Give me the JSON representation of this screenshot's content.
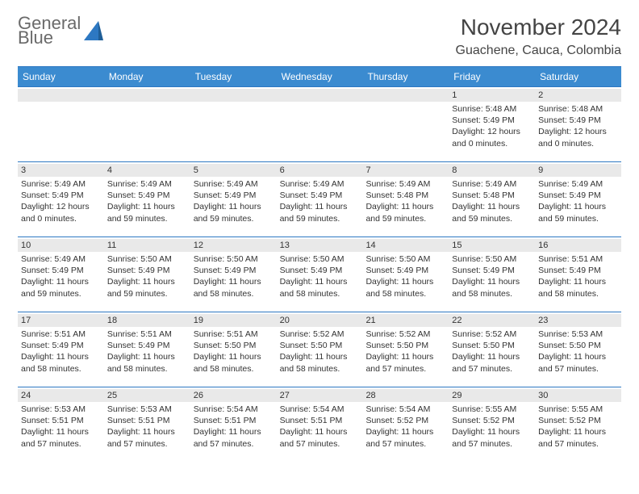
{
  "logo": {
    "word1": "General",
    "word2": "Blue"
  },
  "title": "November 2024",
  "location": "Guachene, Cauca, Colombia",
  "colors": {
    "header_bg": "#3b8bd0",
    "border": "#2d78c2",
    "dayrow_bg": "#e9e9e9",
    "text": "#333333"
  },
  "daysOfWeek": [
    "Sunday",
    "Monday",
    "Tuesday",
    "Wednesday",
    "Thursday",
    "Friday",
    "Saturday"
  ],
  "weeks": [
    [
      {
        "n": "",
        "sunrise": "",
        "sunset": "",
        "daylight": ""
      },
      {
        "n": "",
        "sunrise": "",
        "sunset": "",
        "daylight": ""
      },
      {
        "n": "",
        "sunrise": "",
        "sunset": "",
        "daylight": ""
      },
      {
        "n": "",
        "sunrise": "",
        "sunset": "",
        "daylight": ""
      },
      {
        "n": "",
        "sunrise": "",
        "sunset": "",
        "daylight": ""
      },
      {
        "n": "1",
        "sunrise": "Sunrise: 5:48 AM",
        "sunset": "Sunset: 5:49 PM",
        "daylight": "Daylight: 12 hours and 0 minutes."
      },
      {
        "n": "2",
        "sunrise": "Sunrise: 5:48 AM",
        "sunset": "Sunset: 5:49 PM",
        "daylight": "Daylight: 12 hours and 0 minutes."
      }
    ],
    [
      {
        "n": "3",
        "sunrise": "Sunrise: 5:49 AM",
        "sunset": "Sunset: 5:49 PM",
        "daylight": "Daylight: 12 hours and 0 minutes."
      },
      {
        "n": "4",
        "sunrise": "Sunrise: 5:49 AM",
        "sunset": "Sunset: 5:49 PM",
        "daylight": "Daylight: 11 hours and 59 minutes."
      },
      {
        "n": "5",
        "sunrise": "Sunrise: 5:49 AM",
        "sunset": "Sunset: 5:49 PM",
        "daylight": "Daylight: 11 hours and 59 minutes."
      },
      {
        "n": "6",
        "sunrise": "Sunrise: 5:49 AM",
        "sunset": "Sunset: 5:49 PM",
        "daylight": "Daylight: 11 hours and 59 minutes."
      },
      {
        "n": "7",
        "sunrise": "Sunrise: 5:49 AM",
        "sunset": "Sunset: 5:48 PM",
        "daylight": "Daylight: 11 hours and 59 minutes."
      },
      {
        "n": "8",
        "sunrise": "Sunrise: 5:49 AM",
        "sunset": "Sunset: 5:48 PM",
        "daylight": "Daylight: 11 hours and 59 minutes."
      },
      {
        "n": "9",
        "sunrise": "Sunrise: 5:49 AM",
        "sunset": "Sunset: 5:49 PM",
        "daylight": "Daylight: 11 hours and 59 minutes."
      }
    ],
    [
      {
        "n": "10",
        "sunrise": "Sunrise: 5:49 AM",
        "sunset": "Sunset: 5:49 PM",
        "daylight": "Daylight: 11 hours and 59 minutes."
      },
      {
        "n": "11",
        "sunrise": "Sunrise: 5:50 AM",
        "sunset": "Sunset: 5:49 PM",
        "daylight": "Daylight: 11 hours and 59 minutes."
      },
      {
        "n": "12",
        "sunrise": "Sunrise: 5:50 AM",
        "sunset": "Sunset: 5:49 PM",
        "daylight": "Daylight: 11 hours and 58 minutes."
      },
      {
        "n": "13",
        "sunrise": "Sunrise: 5:50 AM",
        "sunset": "Sunset: 5:49 PM",
        "daylight": "Daylight: 11 hours and 58 minutes."
      },
      {
        "n": "14",
        "sunrise": "Sunrise: 5:50 AM",
        "sunset": "Sunset: 5:49 PM",
        "daylight": "Daylight: 11 hours and 58 minutes."
      },
      {
        "n": "15",
        "sunrise": "Sunrise: 5:50 AM",
        "sunset": "Sunset: 5:49 PM",
        "daylight": "Daylight: 11 hours and 58 minutes."
      },
      {
        "n": "16",
        "sunrise": "Sunrise: 5:51 AM",
        "sunset": "Sunset: 5:49 PM",
        "daylight": "Daylight: 11 hours and 58 minutes."
      }
    ],
    [
      {
        "n": "17",
        "sunrise": "Sunrise: 5:51 AM",
        "sunset": "Sunset: 5:49 PM",
        "daylight": "Daylight: 11 hours and 58 minutes."
      },
      {
        "n": "18",
        "sunrise": "Sunrise: 5:51 AM",
        "sunset": "Sunset: 5:49 PM",
        "daylight": "Daylight: 11 hours and 58 minutes."
      },
      {
        "n": "19",
        "sunrise": "Sunrise: 5:51 AM",
        "sunset": "Sunset: 5:50 PM",
        "daylight": "Daylight: 11 hours and 58 minutes."
      },
      {
        "n": "20",
        "sunrise": "Sunrise: 5:52 AM",
        "sunset": "Sunset: 5:50 PM",
        "daylight": "Daylight: 11 hours and 58 minutes."
      },
      {
        "n": "21",
        "sunrise": "Sunrise: 5:52 AM",
        "sunset": "Sunset: 5:50 PM",
        "daylight": "Daylight: 11 hours and 57 minutes."
      },
      {
        "n": "22",
        "sunrise": "Sunrise: 5:52 AM",
        "sunset": "Sunset: 5:50 PM",
        "daylight": "Daylight: 11 hours and 57 minutes."
      },
      {
        "n": "23",
        "sunrise": "Sunrise: 5:53 AM",
        "sunset": "Sunset: 5:50 PM",
        "daylight": "Daylight: 11 hours and 57 minutes."
      }
    ],
    [
      {
        "n": "24",
        "sunrise": "Sunrise: 5:53 AM",
        "sunset": "Sunset: 5:51 PM",
        "daylight": "Daylight: 11 hours and 57 minutes."
      },
      {
        "n": "25",
        "sunrise": "Sunrise: 5:53 AM",
        "sunset": "Sunset: 5:51 PM",
        "daylight": "Daylight: 11 hours and 57 minutes."
      },
      {
        "n": "26",
        "sunrise": "Sunrise: 5:54 AM",
        "sunset": "Sunset: 5:51 PM",
        "daylight": "Daylight: 11 hours and 57 minutes."
      },
      {
        "n": "27",
        "sunrise": "Sunrise: 5:54 AM",
        "sunset": "Sunset: 5:51 PM",
        "daylight": "Daylight: 11 hours and 57 minutes."
      },
      {
        "n": "28",
        "sunrise": "Sunrise: 5:54 AM",
        "sunset": "Sunset: 5:52 PM",
        "daylight": "Daylight: 11 hours and 57 minutes."
      },
      {
        "n": "29",
        "sunrise": "Sunrise: 5:55 AM",
        "sunset": "Sunset: 5:52 PM",
        "daylight": "Daylight: 11 hours and 57 minutes."
      },
      {
        "n": "30",
        "sunrise": "Sunrise: 5:55 AM",
        "sunset": "Sunset: 5:52 PM",
        "daylight": "Daylight: 11 hours and 57 minutes."
      }
    ]
  ]
}
